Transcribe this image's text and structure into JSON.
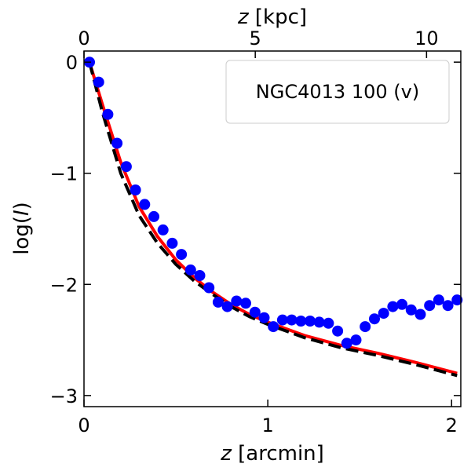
{
  "chart_data": {
    "type": "scatter",
    "legend": {
      "text": "NGC4013 100 (v)",
      "position": "top-right"
    },
    "xlabel": {
      "var": "z",
      "unit": " [arcmin]"
    },
    "ylabel": {
      "prefix": "log(",
      "var": "I",
      "suffix": ")"
    },
    "x2label": {
      "var": "z",
      "unit": " [kpc]"
    },
    "xlim": [
      0,
      2.05
    ],
    "ylim": [
      -3.1,
      0.1
    ],
    "x2lim": [
      0,
      11.0
    ],
    "xticks": [
      0,
      1,
      2
    ],
    "xtick_labels": [
      "0",
      "1",
      "2"
    ],
    "yticks": [
      0,
      -1,
      -2,
      -3
    ],
    "ytick_labels": [
      "0",
      "−1",
      "−2",
      "−3"
    ],
    "x2ticks": [
      0,
      5,
      10
    ],
    "x2tick_labels": [
      "0",
      "5",
      "10"
    ],
    "series": [
      {
        "name": "data",
        "style": "markers",
        "color": "#0000ff",
        "x": [
          0.03,
          0.08,
          0.13,
          0.18,
          0.23,
          0.28,
          0.33,
          0.38,
          0.43,
          0.48,
          0.53,
          0.58,
          0.63,
          0.68,
          0.73,
          0.78,
          0.83,
          0.88,
          0.93,
          0.98,
          1.03,
          1.08,
          1.13,
          1.18,
          1.23,
          1.28,
          1.33,
          1.38,
          1.43,
          1.48,
          1.53,
          1.58,
          1.63,
          1.68,
          1.73,
          1.78,
          1.83,
          1.88,
          1.93,
          1.98,
          2.03
        ],
        "y": [
          0.0,
          -0.18,
          -0.47,
          -0.73,
          -0.94,
          -1.15,
          -1.28,
          -1.39,
          -1.51,
          -1.63,
          -1.73,
          -1.87,
          -1.92,
          -2.03,
          -2.16,
          -2.2,
          -2.15,
          -2.17,
          -2.25,
          -2.3,
          -2.38,
          -2.32,
          -2.32,
          -2.33,
          -2.33,
          -2.34,
          -2.35,
          -2.42,
          -2.53,
          -2.5,
          -2.38,
          -2.31,
          -2.26,
          -2.2,
          -2.18,
          -2.23,
          -2.27,
          -2.19,
          -2.14,
          -2.19,
          -2.14
        ]
      },
      {
        "name": "model-red",
        "style": "solid",
        "color": "#ff0000",
        "x": [
          0.03,
          0.1,
          0.2,
          0.3,
          0.4,
          0.5,
          0.6,
          0.7,
          0.8,
          0.9,
          1.0,
          1.2,
          1.4,
          1.6,
          1.8,
          2.03
        ],
        "y": [
          0.0,
          -0.38,
          -0.9,
          -1.3,
          -1.57,
          -1.78,
          -1.94,
          -2.07,
          -2.18,
          -2.27,
          -2.34,
          -2.46,
          -2.55,
          -2.62,
          -2.7,
          -2.8
        ]
      },
      {
        "name": "model-black",
        "style": "dashed",
        "color": "#000000",
        "x": [
          0.03,
          0.1,
          0.2,
          0.3,
          0.4,
          0.5,
          0.6,
          0.7,
          0.8,
          0.9,
          1.0,
          1.2,
          1.4,
          1.6,
          1.8,
          2.03
        ],
        "y": [
          0.0,
          -0.45,
          -1.0,
          -1.38,
          -1.63,
          -1.82,
          -1.97,
          -2.09,
          -2.2,
          -2.29,
          -2.36,
          -2.48,
          -2.57,
          -2.64,
          -2.72,
          -2.82
        ]
      }
    ]
  }
}
